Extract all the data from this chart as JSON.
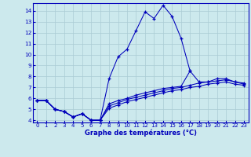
{
  "xlabel": "Graphe des températures (°C)",
  "hours": [
    0,
    1,
    2,
    3,
    4,
    5,
    6,
    7,
    8,
    9,
    10,
    11,
    12,
    13,
    14,
    15,
    16,
    17,
    18,
    19,
    20,
    21,
    22,
    23
  ],
  "temp_instant": [
    5.8,
    5.8,
    5.0,
    4.8,
    4.3,
    4.6,
    4.0,
    4.0,
    7.8,
    9.8,
    10.5,
    12.2,
    13.9,
    13.3,
    14.5,
    13.5,
    11.5,
    8.5,
    null,
    null,
    null,
    null,
    null,
    null
  ],
  "temp_line1": [
    5.8,
    5.8,
    5.0,
    4.8,
    4.3,
    4.6,
    4.0,
    4.0,
    5.5,
    5.8,
    6.0,
    6.3,
    6.5,
    6.7,
    6.9,
    7.0,
    7.1,
    8.5,
    7.5,
    7.5,
    7.8,
    7.8,
    7.5,
    7.4
  ],
  "temp_line2": [
    5.8,
    5.8,
    5.0,
    4.8,
    4.3,
    4.6,
    4.0,
    4.0,
    5.3,
    5.6,
    5.9,
    6.1,
    6.3,
    6.5,
    6.7,
    6.9,
    7.0,
    7.2,
    7.4,
    7.5,
    7.6,
    7.7,
    7.5,
    7.3
  ],
  "temp_line3": [
    5.8,
    5.8,
    5.0,
    4.8,
    4.3,
    4.6,
    4.0,
    4.0,
    5.1,
    5.4,
    5.7,
    5.9,
    6.1,
    6.3,
    6.5,
    6.7,
    6.8,
    7.0,
    7.1,
    7.3,
    7.4,
    7.5,
    7.3,
    7.2
  ],
  "bg_color": "#cce9ed",
  "line_color": "#0000bb",
  "grid_color": "#aaccd4",
  "ylim_min": 3.8,
  "ylim_max": 14.7,
  "xlim_min": -0.5,
  "xlim_max": 23.5,
  "yticks": [
    4,
    5,
    6,
    7,
    8,
    9,
    10,
    11,
    12,
    13,
    14
  ],
  "xticks": [
    0,
    1,
    2,
    3,
    4,
    5,
    6,
    7,
    8,
    9,
    10,
    11,
    12,
    13,
    14,
    15,
    16,
    17,
    18,
    19,
    20,
    21,
    22,
    23
  ],
  "tick_fontsize": 5.0,
  "xlabel_fontsize": 6.0
}
